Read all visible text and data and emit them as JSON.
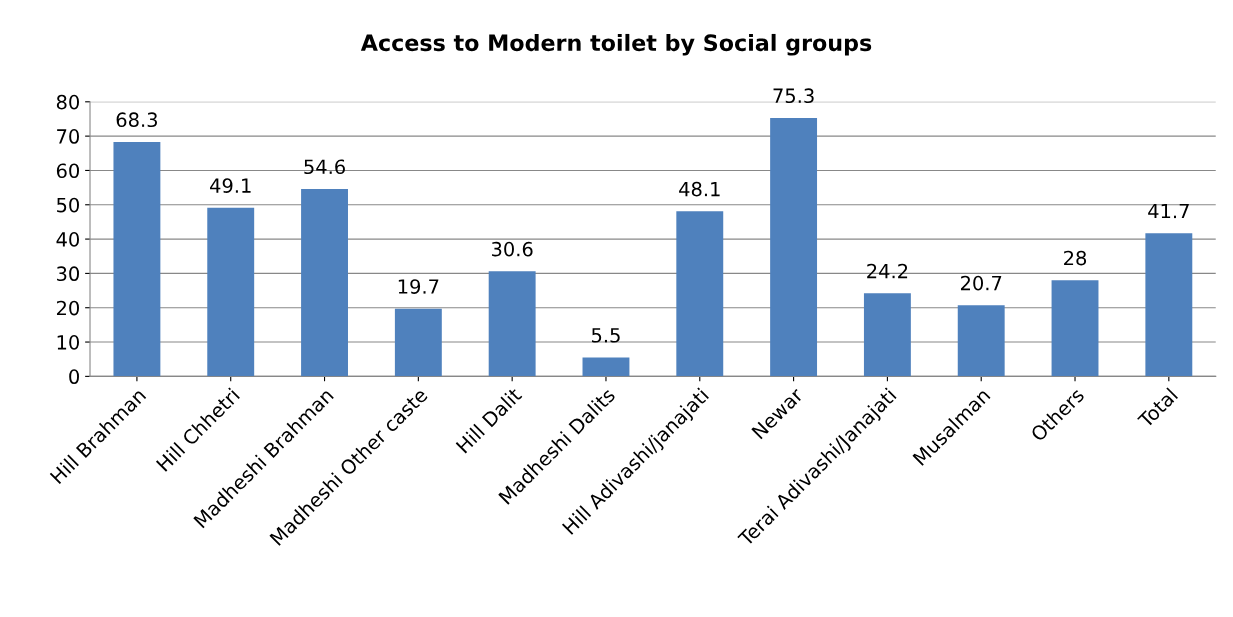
{
  "chart_data": {
    "type": "bar",
    "title": "Access to Modern toilet by Social groups",
    "categories": [
      "Hill Brahman",
      "Hill Chhetri",
      "Madheshi Brahman",
      "Madheshi Other caste",
      "Hill Dalit",
      "Madheshi Dalits",
      "Hill Adivashi/janajati",
      "Newar",
      "Terai Adivashi/Janajati",
      "Musalman",
      "Others",
      "Total"
    ],
    "values": [
      68.3,
      49.1,
      54.6,
      19.7,
      30.6,
      5.5,
      48.1,
      75.3,
      24.2,
      20.7,
      28,
      41.7
    ],
    "color": "#4f81bd",
    "ylim": [
      0,
      80
    ],
    "yticks": [
      0,
      10,
      20,
      30,
      40,
      50,
      60,
      70,
      80
    ],
    "grid": "y",
    "data_labels": true,
    "legend": false
  }
}
